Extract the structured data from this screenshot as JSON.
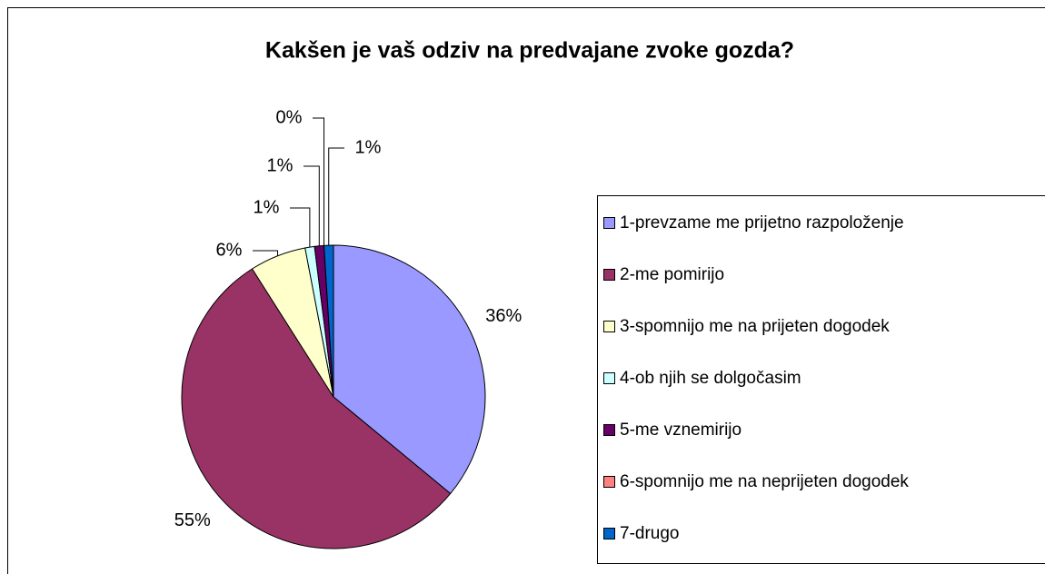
{
  "chart_data": {
    "type": "pie",
    "title": "Kakšen je vaš odziv na predvajane zvoke gozda?",
    "categories": [
      "1-prevzame me prijetno razpoloženje",
      "2-me pomirijo",
      "3-spomnijo me na prijeten dogodek",
      "4-ob njih se dolgočasim",
      "5-me vznemirijo",
      "6-spomnijo me na neprijeten dogodek",
      "7-drugo"
    ],
    "values": [
      36,
      55,
      6,
      1,
      1,
      0,
      1
    ],
    "value_labels": [
      "36%",
      "55%",
      "6%",
      "1%",
      "1%",
      "0%",
      "1%"
    ],
    "colors": [
      "#9999ff",
      "#993366",
      "#ffffcc",
      "#ccffff",
      "#660066",
      "#ff8080",
      "#0066cc"
    ],
    "legend": "right"
  }
}
